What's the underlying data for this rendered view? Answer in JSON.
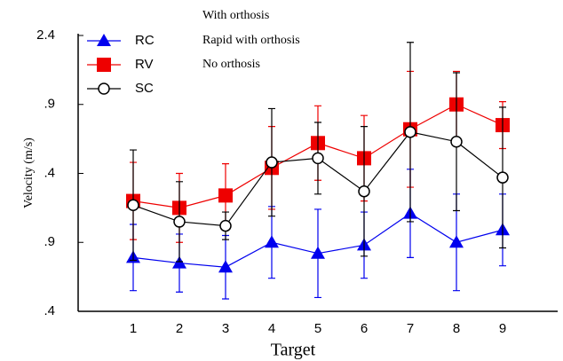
{
  "chart_data": {
    "type": "line",
    "annotations": [
      "With orthosis",
      "Rapid with orthosis",
      "No orthosis"
    ],
    "xlabel": "Target",
    "ylabel": "Velocity (m/s)",
    "categories": [
      "1",
      "2",
      "3",
      "4",
      "5",
      "6",
      "7",
      "8",
      "9"
    ],
    "ylim": [
      0.4,
      2.4
    ],
    "yticks": [
      2.4,
      {
        "value": 1.9,
        "label": ".9"
      },
      {
        "value": 1.4,
        "label": ".4"
      },
      {
        "value": 0.9,
        "label": ".9"
      },
      {
        "value": 0.4,
        "label": ".4"
      }
    ],
    "legend": "top-left",
    "series": [
      {
        "name": "RC",
        "color": "#0000ee",
        "marker": "triangle",
        "values": [
          0.79,
          0.75,
          0.72,
          0.9,
          0.82,
          0.88,
          1.11,
          0.9,
          0.99
        ],
        "errors": [
          0.24,
          0.21,
          0.23,
          0.26,
          0.32,
          0.24,
          0.32,
          0.35,
          0.26
        ]
      },
      {
        "name": "RV",
        "color": "#ee0000",
        "marker": "square",
        "values": [
          1.2,
          1.15,
          1.24,
          1.44,
          1.62,
          1.51,
          1.72,
          1.9,
          1.75
        ],
        "errors": [
          0.28,
          0.25,
          0.23,
          0.3,
          0.27,
          0.31,
          0.42,
          0.24,
          0.17
        ]
      },
      {
        "name": "SC",
        "color": "#000000",
        "marker": "circle",
        "values": [
          1.17,
          1.05,
          1.02,
          1.48,
          1.51,
          1.27,
          1.7,
          1.63,
          1.37
        ],
        "errors": [
          0.4,
          0.29,
          0.1,
          0.39,
          0.26,
          0.47,
          0.65,
          0.5,
          0.51
        ]
      }
    ]
  }
}
